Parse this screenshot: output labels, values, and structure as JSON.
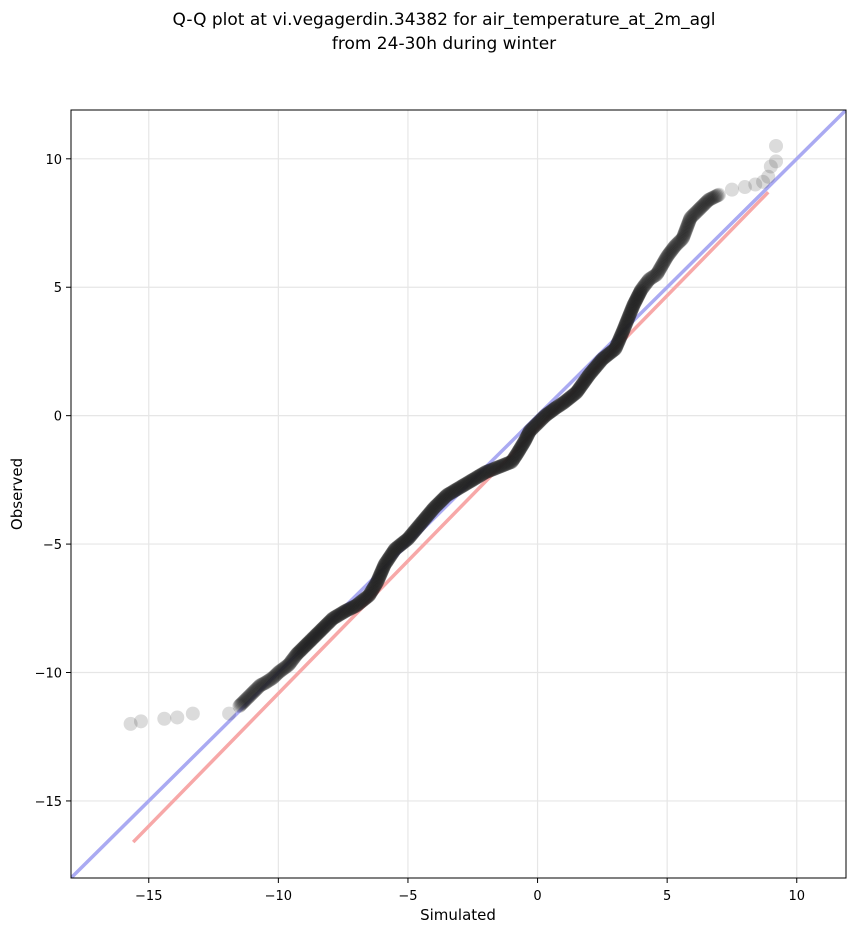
{
  "chart_data": {
    "type": "scatter",
    "title_line1": "Q-Q plot at vi.vegagerdin.34382 for air_temperature_at_2m_agl",
    "title_line2": "from 24-30h during winter",
    "xlabel": "Simulated",
    "ylabel": "Observed",
    "xlim": [
      -18,
      11.9
    ],
    "ylim": [
      -18,
      11.9
    ],
    "xticks": [
      -15,
      -10,
      -5,
      0,
      5,
      10
    ],
    "yticks": [
      -15,
      -10,
      -5,
      0,
      5,
      10
    ],
    "xtick_labels": [
      "−15",
      "−10",
      "−5",
      "0",
      "5",
      "10"
    ],
    "ytick_labels": [
      "−15",
      "−10",
      "−5",
      "0",
      "5",
      "10"
    ],
    "grid": true,
    "colors": {
      "identity": "#aaaaf2",
      "fit": "#f7a8a8",
      "points": "#222222"
    },
    "identity_line": {
      "x": [
        -18,
        11.9
      ],
      "y": [
        -18,
        11.9
      ]
    },
    "fit_line": {
      "x": [
        -15.6,
        8.9
      ],
      "y": [
        -16.6,
        8.7
      ]
    },
    "qq_curve": {
      "x": [
        -15.7,
        -15.3,
        -14.4,
        -13.9,
        -13.3,
        -11.9,
        -11.5,
        -11.3,
        -11.0,
        -10.7,
        -10.5,
        -10.2,
        -10.0,
        -9.6,
        -9.3,
        -9.0,
        -8.6,
        -8.2,
        -7.9,
        -7.4,
        -7.0,
        -6.5,
        -6.2,
        -5.9,
        -5.5,
        -5.0,
        -4.5,
        -4.0,
        -3.5,
        -3.0,
        -2.5,
        -2.0,
        -1.5,
        -1.0,
        -0.8,
        -0.5,
        -0.3,
        0.0,
        0.3,
        0.7,
        1.0,
        1.5,
        2.0,
        2.5,
        3.0,
        3.3,
        3.5,
        3.7,
        4.0,
        4.3,
        4.6,
        5.0,
        5.3,
        5.6,
        5.9,
        6.2,
        6.6,
        7.0,
        7.5,
        8.0,
        8.4,
        8.7,
        8.9,
        9.0,
        9.2,
        9.2
      ],
      "y": [
        -12.0,
        -11.9,
        -11.8,
        -11.75,
        -11.6,
        -11.6,
        -11.3,
        -11.1,
        -10.8,
        -10.5,
        -10.4,
        -10.2,
        -10.0,
        -9.7,
        -9.3,
        -9.0,
        -8.6,
        -8.2,
        -7.9,
        -7.6,
        -7.4,
        -7.0,
        -6.5,
        -5.8,
        -5.2,
        -4.8,
        -4.2,
        -3.6,
        -3.1,
        -2.8,
        -2.5,
        -2.2,
        -2.0,
        -1.8,
        -1.5,
        -1.0,
        -0.6,
        -0.3,
        0.0,
        0.3,
        0.5,
        0.9,
        1.6,
        2.2,
        2.6,
        3.3,
        3.8,
        4.3,
        4.9,
        5.3,
        5.5,
        6.2,
        6.6,
        6.9,
        7.7,
        8.0,
        8.4,
        8.6,
        8.8,
        8.9,
        9.0,
        9.1,
        9.3,
        9.7,
        9.9,
        10.5
      ]
    }
  }
}
